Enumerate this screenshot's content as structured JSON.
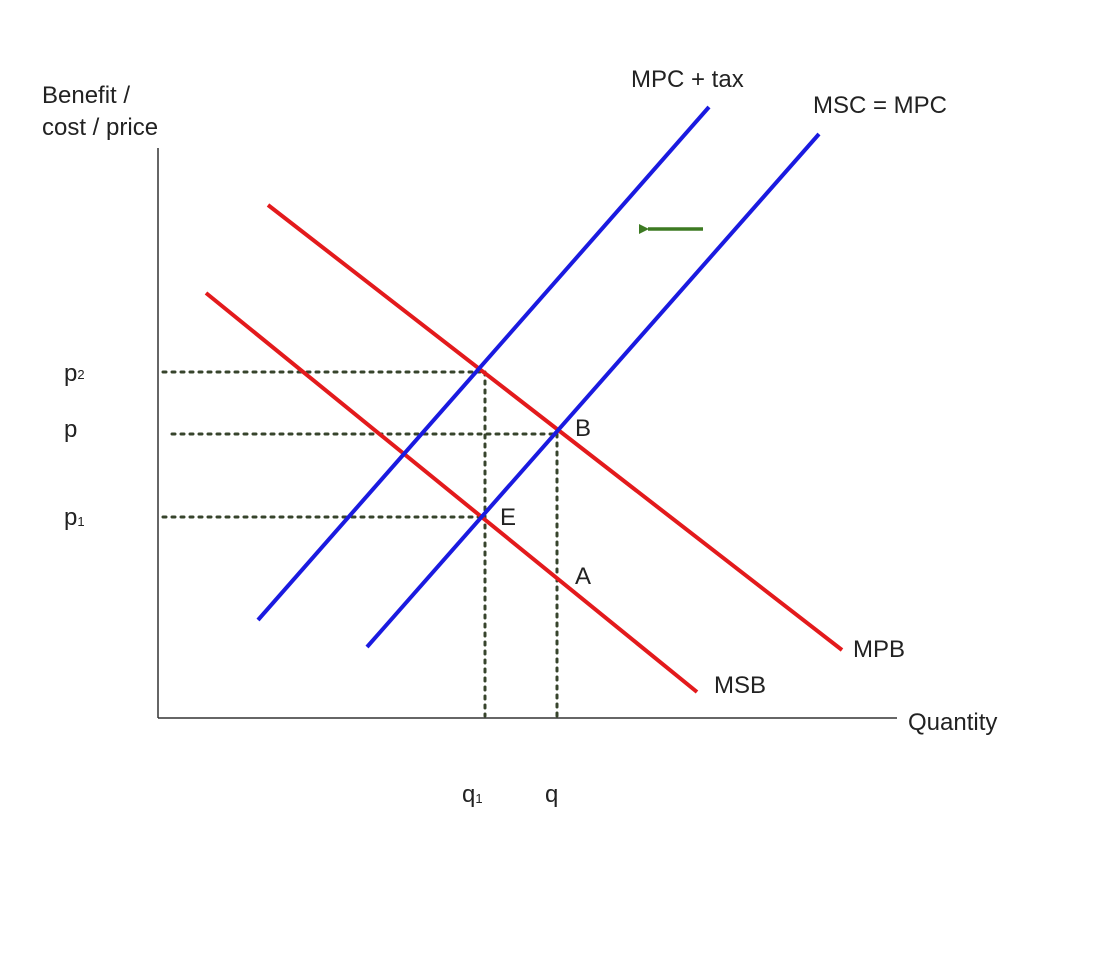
{
  "axes": {
    "y_label_line1": "Benefit /",
    "y_label_line2": "cost / price",
    "x_label": "Quantity"
  },
  "price_labels": {
    "p2": {
      "main": "p",
      "sub": "2"
    },
    "p": {
      "main": "p"
    },
    "p1": {
      "main": "p",
      "sub": "1"
    }
  },
  "quantity_labels": {
    "q1": {
      "main": "q",
      "sub": "1"
    },
    "q": {
      "main": "q"
    }
  },
  "curves": {
    "mpc_tax": "MPC + tax",
    "msc_mpc": "MSC = MPC",
    "mpb": "MPB",
    "msb": "MSB"
  },
  "points": {
    "B": "B",
    "E": "E",
    "A": "A"
  },
  "colors": {
    "benefit_curves": "#e31a1c",
    "cost_curves": "#1a1ae0",
    "arrow": "#3d7a22",
    "guides": "#37442c",
    "axes": "#333333"
  },
  "annotations": {
    "shift_arrow": "arrow-left-icon"
  }
}
